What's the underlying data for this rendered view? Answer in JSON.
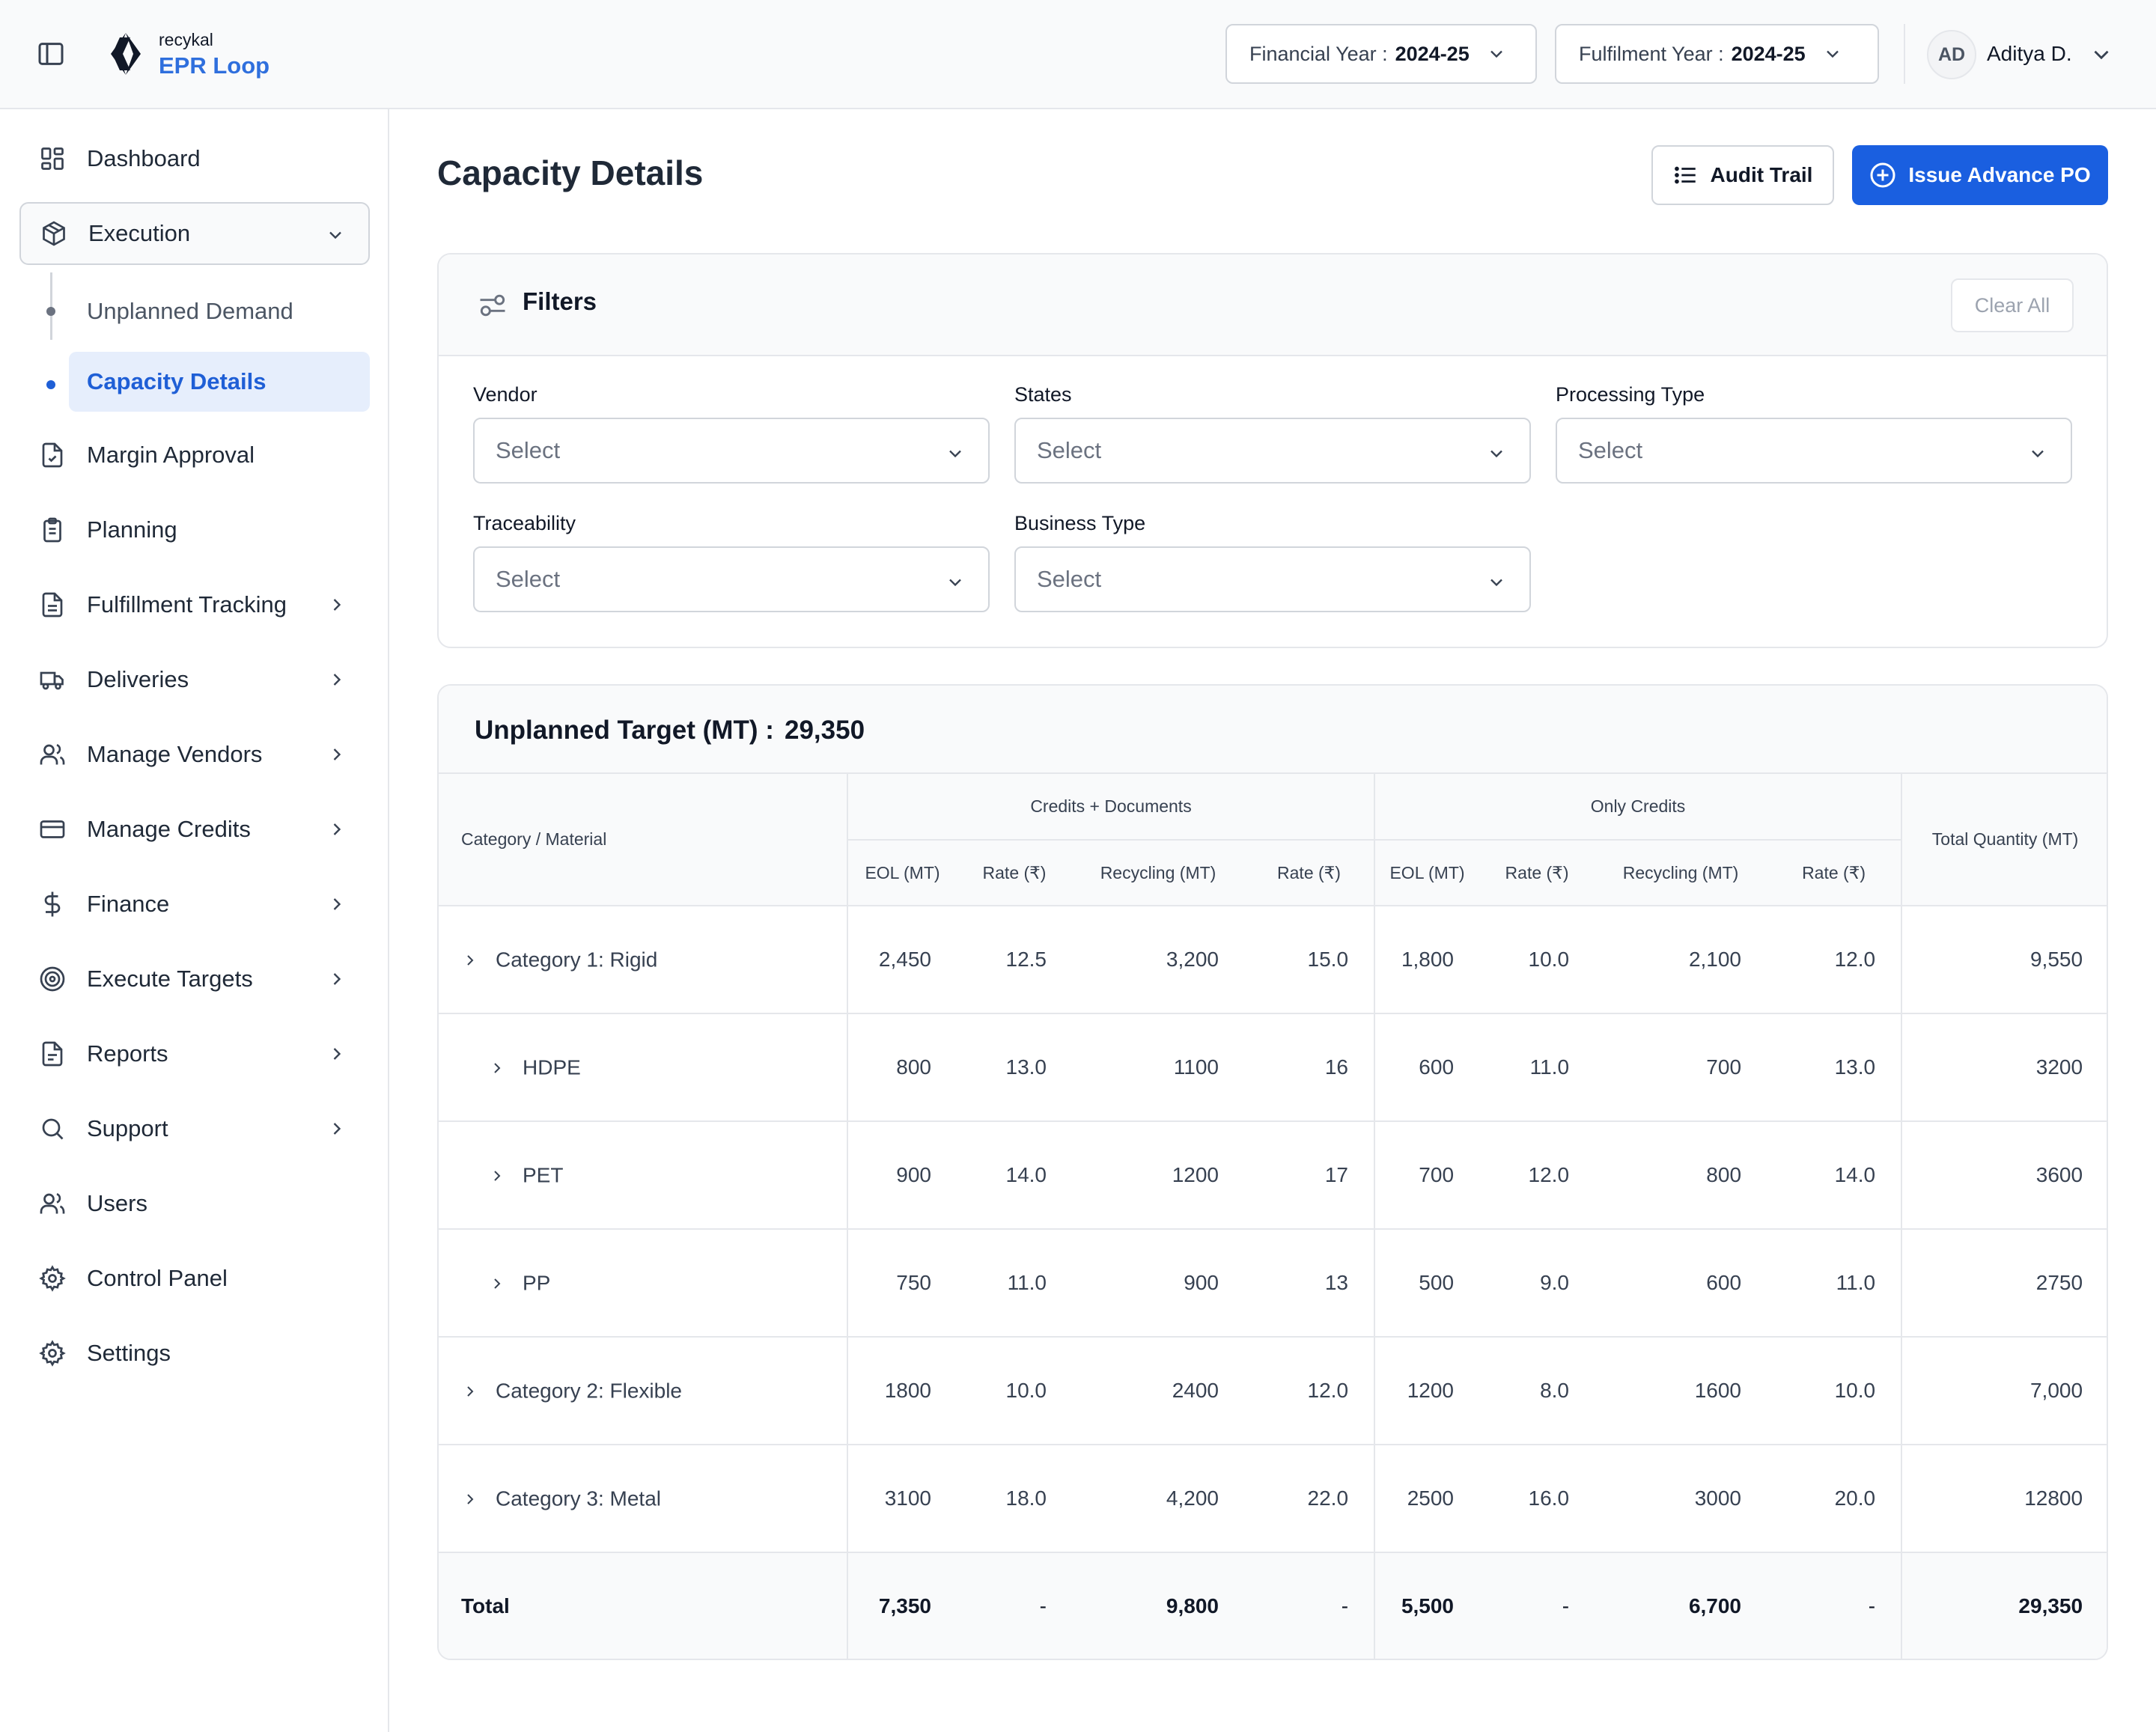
{
  "brand": {
    "small": "recykal",
    "big": "EPR Loop"
  },
  "header": {
    "financial_year_label": "Financial Year : ",
    "financial_year_value": "2024-25",
    "fulfilment_year_label": "Fulfilment Year : ",
    "fulfilment_year_value": "2024-25",
    "avatar_initials": "AD",
    "user_name": "Aditya D."
  },
  "sidebar": {
    "items": [
      {
        "label": "Dashboard",
        "icon": "dashboard-grid-icon"
      },
      {
        "label": "Execution",
        "icon": "box-icon",
        "expanded": true
      },
      {
        "label": "Margin Approval",
        "icon": "file-check-icon"
      },
      {
        "label": "Planning",
        "icon": "clipboard-icon"
      },
      {
        "label": "Fulfillment Tracking",
        "icon": "document-icon"
      },
      {
        "label": "Deliveries",
        "icon": "truck-icon"
      },
      {
        "label": "Manage Vendors",
        "icon": "users-icon"
      },
      {
        "label": "Manage Credits",
        "icon": "credit-card-icon"
      },
      {
        "label": "Finance",
        "icon": "dollar-icon"
      },
      {
        "label": "Execute Targets",
        "icon": "target-icon"
      },
      {
        "label": "Reports",
        "icon": "report-icon"
      },
      {
        "label": "Support",
        "icon": "search-icon"
      },
      {
        "label": "Users",
        "icon": "users-icon"
      },
      {
        "label": "Control Panel",
        "icon": "gear-icon"
      },
      {
        "label": "Settings",
        "icon": "gear-icon"
      }
    ],
    "sub_items": [
      {
        "label": "Unplanned Demand",
        "active": false
      },
      {
        "label": "Capacity Details",
        "active": true
      }
    ]
  },
  "page": {
    "title": "Capacity Details",
    "audit_trail_label": "Audit Trail",
    "issue_po_label": "Issue Advance PO"
  },
  "filters": {
    "title": "Filters",
    "clear_all": "Clear All",
    "fields": [
      {
        "label": "Vendor",
        "placeholder": "Select"
      },
      {
        "label": "States",
        "placeholder": "Select"
      },
      {
        "label": "Processing Type",
        "placeholder": "Select"
      },
      {
        "label": "Traceability",
        "placeholder": "Select"
      },
      {
        "label": "Business Type",
        "placeholder": "Select"
      }
    ]
  },
  "table": {
    "target_label": "Unplanned Target (MT) :",
    "target_value": "29,350",
    "col_category": "Category / Material",
    "group_credits_docs": "Credits + Documents",
    "group_only_credits": "Only Credits",
    "col_total": "Total Quantity (MT)",
    "sub_headers": [
      "EOL (MT)",
      "Rate (₹)",
      "Recycling (MT)",
      "Rate (₹)",
      "EOL (MT)",
      "Rate (₹)",
      "Recycling (MT)",
      "Rate (₹)"
    ],
    "rows": [
      {
        "name": "Category 1: Rigid",
        "level": 1,
        "cells": [
          "2,450",
          "12.5",
          "3,200",
          "15.0",
          "1,800",
          "10.0",
          "2,100",
          "12.0",
          "9,550"
        ]
      },
      {
        "name": "HDPE",
        "level": 2,
        "cells": [
          "800",
          "13.0",
          "1100",
          "16",
          "600",
          "11.0",
          "700",
          "13.0",
          "3200"
        ]
      },
      {
        "name": "PET",
        "level": 2,
        "cells": [
          "900",
          "14.0",
          "1200",
          "17",
          "700",
          "12.0",
          "800",
          "14.0",
          "3600"
        ]
      },
      {
        "name": "PP",
        "level": 2,
        "cells": [
          "750",
          "11.0",
          "900",
          "13",
          "500",
          "9.0",
          "600",
          "11.0",
          "2750"
        ]
      },
      {
        "name": "Category 2: Flexible",
        "level": 1,
        "cells": [
          "1800",
          "10.0",
          "2400",
          "12.0",
          "1200",
          "8.0",
          "1600",
          "10.0",
          "7,000"
        ]
      },
      {
        "name": "Category 3: Metal",
        "level": 1,
        "cells": [
          "3100",
          "18.0",
          "4,200",
          "22.0",
          "2500",
          "16.0",
          "3000",
          "20.0",
          "12800"
        ]
      }
    ],
    "total": {
      "name": "Total",
      "cells": [
        "7,350",
        "-",
        "9,800",
        "-",
        "5,500",
        "-",
        "6,700",
        "-",
        "29,350"
      ]
    }
  },
  "colors": {
    "accent": "#1a5fe0",
    "active_bg": "#e6eefc",
    "border": "#e5e7eb"
  }
}
